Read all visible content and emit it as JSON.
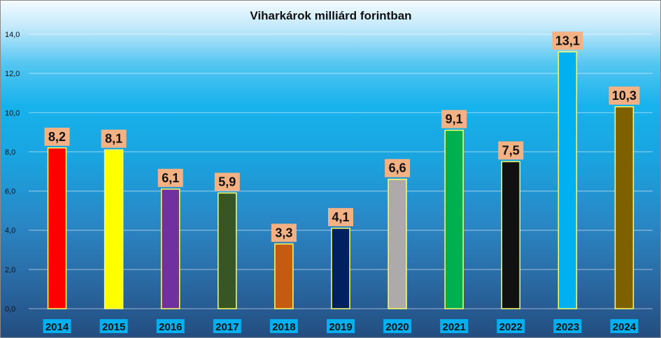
{
  "chart_data": {
    "type": "bar",
    "title": "Viharkárok milliárd forintban",
    "xlabel": "",
    "ylabel": "",
    "ylim": [
      0,
      14
    ],
    "yticks": [
      "0,0",
      "2,0",
      "4,0",
      "6,0",
      "8,0",
      "10,0",
      "12,0",
      "14,0"
    ],
    "grid": true,
    "legend": "none",
    "categories": [
      "2014",
      "2015",
      "2016",
      "2017",
      "2018",
      "2019",
      "2020",
      "2021",
      "2022",
      "2023",
      "2024"
    ],
    "values": [
      8.2,
      8.1,
      6.1,
      5.9,
      3.3,
      4.1,
      6.6,
      9.1,
      7.5,
      13.1,
      10.3
    ],
    "value_labels": [
      "8,2",
      "8,1",
      "6,1",
      "5,9",
      "3,3",
      "4,1",
      "6,6",
      "9,1",
      "7,5",
      "13,1",
      "10,3"
    ],
    "bar_colors": [
      "#ff0000",
      "#ffff00",
      "#7030a0",
      "#375623",
      "#c55a11",
      "#002060",
      "#aeaaaa",
      "#00b050",
      "#111111",
      "#00b0f0",
      "#7f6000"
    ],
    "bar_outline_color": "#ffff66",
    "data_label_background": "#f4b183",
    "category_label_background": "#00b0f0"
  }
}
